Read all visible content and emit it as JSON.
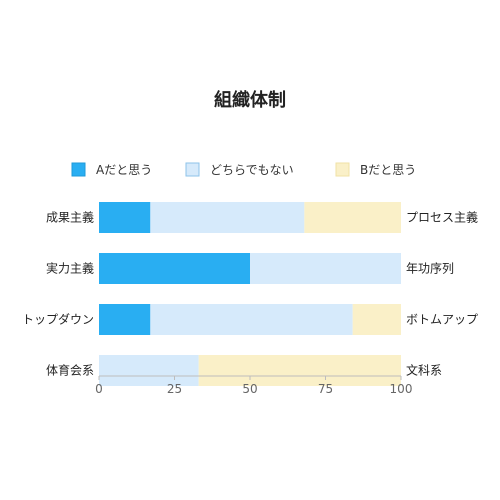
{
  "chart_data": {
    "type": "bar",
    "orientation": "horizontal",
    "stacked": true,
    "title": "組織体制",
    "xlabel": "",
    "ylabel": "",
    "xlim": [
      0,
      100
    ],
    "xticks": [
      0,
      25,
      50,
      75,
      100
    ],
    "grid": false,
    "legend_position": "top",
    "categories": [
      {
        "left": "成果主義",
        "right": "プロセス主義"
      },
      {
        "left": "実力主義",
        "right": "年功序列"
      },
      {
        "left": "トップダウン",
        "right": "ボトムアップ"
      },
      {
        "left": "体育会系",
        "right": "文科系"
      }
    ],
    "series": [
      {
        "name": "Aだと思う",
        "color": "#29aef2",
        "values": [
          17,
          50,
          17,
          0
        ]
      },
      {
        "name": "どちらでもない",
        "color": "#d6eafb",
        "values": [
          51,
          50,
          67,
          33
        ]
      },
      {
        "name": "Bだと思う",
        "color": "#faf0c8",
        "values": [
          32,
          0,
          16,
          67
        ]
      }
    ]
  }
}
